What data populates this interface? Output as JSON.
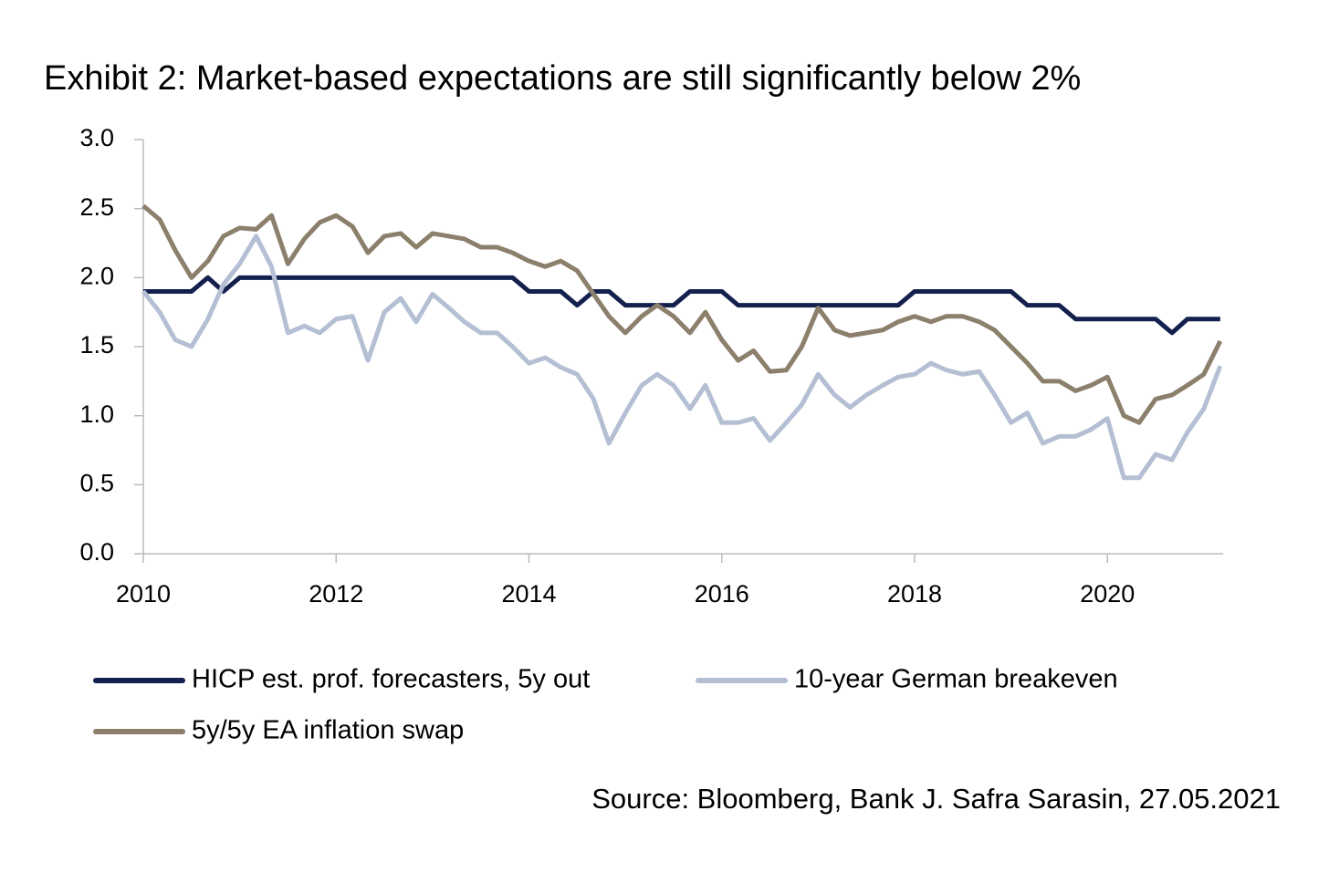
{
  "chart_data": {
    "type": "line",
    "title": "Exhibit 2: Market-based expectations are still significantly below 2%",
    "source": "Source: Bloomberg, Bank J. Safra Sarasin, 27.05.2021",
    "x": [
      2010,
      2010.17,
      2010.33,
      2010.5,
      2010.67,
      2010.83,
      2011,
      2011.17,
      2011.33,
      2011.5,
      2011.67,
      2011.83,
      2012,
      2012.17,
      2012.33,
      2012.5,
      2012.67,
      2012.83,
      2013,
      2013.17,
      2013.33,
      2013.5,
      2013.67,
      2013.83,
      2014,
      2014.17,
      2014.33,
      2014.5,
      2014.67,
      2014.83,
      2015,
      2015.17,
      2015.33,
      2015.5,
      2015.67,
      2015.83,
      2016,
      2016.17,
      2016.33,
      2016.5,
      2016.67,
      2016.83,
      2017,
      2017.17,
      2017.33,
      2017.5,
      2017.67,
      2017.83,
      2018,
      2018.17,
      2018.33,
      2018.5,
      2018.67,
      2018.83,
      2019,
      2019.17,
      2019.33,
      2019.5,
      2019.67,
      2019.83,
      2020,
      2020.17,
      2020.33,
      2020.5,
      2020.67,
      2020.83,
      2021,
      2021.17
    ],
    "series": [
      {
        "name": "HICP est. prof. forecasters, 5y out",
        "color": "#14214f",
        "values": [
          1.9,
          1.9,
          1.9,
          1.9,
          2.0,
          1.9,
          2.0,
          2.0,
          2.0,
          2.0,
          2.0,
          2.0,
          2.0,
          2.0,
          2.0,
          2.0,
          2.0,
          2.0,
          2.0,
          2.0,
          2.0,
          2.0,
          2.0,
          2.0,
          1.9,
          1.9,
          1.9,
          1.8,
          1.9,
          1.9,
          1.8,
          1.8,
          1.8,
          1.8,
          1.9,
          1.9,
          1.9,
          1.8,
          1.8,
          1.8,
          1.8,
          1.8,
          1.8,
          1.8,
          1.8,
          1.8,
          1.8,
          1.8,
          1.9,
          1.9,
          1.9,
          1.9,
          1.9,
          1.9,
          1.9,
          1.8,
          1.8,
          1.8,
          1.7,
          1.7,
          1.7,
          1.7,
          1.7,
          1.7,
          1.6,
          1.7,
          1.7,
          1.7
        ]
      },
      {
        "name": "10-year German breakeven",
        "color": "#b4bfd4",
        "values": [
          1.9,
          1.75,
          1.55,
          1.5,
          1.7,
          1.95,
          2.1,
          2.3,
          2.08,
          1.6,
          1.65,
          1.6,
          1.7,
          1.72,
          1.4,
          1.75,
          1.85,
          1.68,
          1.88,
          1.78,
          1.68,
          1.6,
          1.6,
          1.5,
          1.38,
          1.42,
          1.35,
          1.3,
          1.12,
          0.8,
          1.02,
          1.22,
          1.3,
          1.22,
          1.05,
          1.22,
          0.95,
          0.95,
          0.98,
          0.82,
          0.95,
          1.08,
          1.3,
          1.15,
          1.06,
          1.15,
          1.22,
          1.28,
          1.3,
          1.38,
          1.33,
          1.3,
          1.32,
          1.15,
          0.95,
          1.02,
          0.8,
          0.85,
          0.85,
          0.9,
          0.98,
          0.55,
          0.55,
          0.72,
          0.68,
          0.88,
          1.05,
          1.36
        ]
      },
      {
        "name": "5y/5y EA inflation swap",
        "color": "#8c7f6b",
        "values": [
          2.52,
          2.42,
          2.2,
          2.0,
          2.12,
          2.3,
          2.36,
          2.35,
          2.45,
          2.1,
          2.28,
          2.4,
          2.45,
          2.37,
          2.18,
          2.3,
          2.32,
          2.22,
          2.32,
          2.3,
          2.28,
          2.22,
          2.22,
          2.18,
          2.12,
          2.08,
          2.12,
          2.05,
          1.88,
          1.72,
          1.6,
          1.72,
          1.8,
          1.72,
          1.6,
          1.75,
          1.55,
          1.4,
          1.47,
          1.32,
          1.33,
          1.5,
          1.78,
          1.62,
          1.58,
          1.6,
          1.62,
          1.68,
          1.72,
          1.68,
          1.72,
          1.72,
          1.68,
          1.62,
          1.5,
          1.38,
          1.25,
          1.25,
          1.18,
          1.22,
          1.28,
          1.0,
          0.95,
          1.12,
          1.15,
          1.22,
          1.3,
          1.54
        ]
      }
    ],
    "xlim": [
      2010,
      2021.2
    ],
    "xticks": [
      2010,
      2012,
      2014,
      2016,
      2018,
      2020
    ],
    "ylim": [
      0,
      3
    ],
    "yticks": [
      {
        "value": 0,
        "label": "0.0"
      },
      0.5,
      {
        "value": 1,
        "label": "1.0"
      },
      1.5,
      {
        "value": 2,
        "label": "2.0"
      },
      2.5,
      {
        "value": 3,
        "label": "3.0"
      }
    ],
    "grid": false
  }
}
